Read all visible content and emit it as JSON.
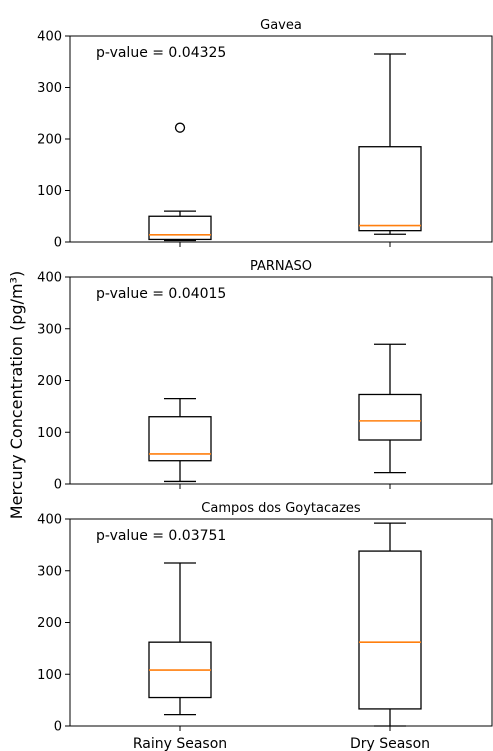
{
  "figure": {
    "ylabel": "Mercury Concentration (pg/m³)"
  },
  "chart_data": [
    {
      "type": "box",
      "title": "Gavea",
      "annotation": "p-value = 0.04325",
      "categories": [
        "Rainy Season",
        "Dry Season"
      ],
      "ylim": [
        0,
        400
      ],
      "yticks": [
        0,
        100,
        200,
        300,
        400
      ],
      "boxes": [
        {
          "name": "Rainy Season",
          "whisker_low": 3,
          "q1": 5,
          "median": 14,
          "q3": 50,
          "whisker_high": 60,
          "outliers": [
            222
          ]
        },
        {
          "name": "Dry Season",
          "whisker_low": 15,
          "q1": 22,
          "median": 32,
          "q3": 185,
          "whisker_high": 365,
          "outliers": []
        }
      ]
    },
    {
      "type": "box",
      "title": "PARNASO",
      "annotation": "p-value = 0.04015",
      "categories": [
        "Rainy Season",
        "Dry Season"
      ],
      "ylim": [
        0,
        400
      ],
      "yticks": [
        0,
        100,
        200,
        300,
        400
      ],
      "boxes": [
        {
          "name": "Rainy Season",
          "whisker_low": 5,
          "q1": 45,
          "median": 58,
          "q3": 130,
          "whisker_high": 165,
          "outliers": []
        },
        {
          "name": "Dry Season",
          "whisker_low": 22,
          "q1": 85,
          "median": 122,
          "q3": 173,
          "whisker_high": 270,
          "outliers": []
        }
      ]
    },
    {
      "type": "box",
      "title": "Campos dos Goytacazes",
      "annotation": "p-value = 0.03751",
      "categories": [
        "Rainy Season",
        "Dry Season"
      ],
      "ylim": [
        0,
        400
      ],
      "yticks": [
        0,
        100,
        200,
        300,
        400
      ],
      "boxes": [
        {
          "name": "Rainy Season",
          "whisker_low": 22,
          "q1": 55,
          "median": 108,
          "q3": 162,
          "whisker_high": 315,
          "outliers": []
        },
        {
          "name": "Dry Season",
          "whisker_low": 0,
          "q1": 33,
          "median": 162,
          "q3": 338,
          "whisker_high": 392,
          "outliers": []
        }
      ]
    }
  ],
  "colors": {
    "box_edge": "#000000",
    "median": "#ff7f0e",
    "outlier_edge": "#000000"
  }
}
